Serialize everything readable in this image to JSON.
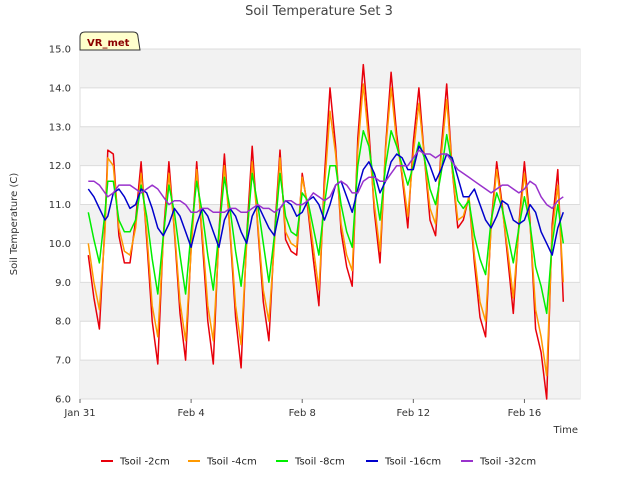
{
  "chart_data": {
    "type": "line",
    "title": "Soil Temperature Set 3",
    "xlabel": "Time",
    "ylabel": "Soil Temperature (C)",
    "badge": "VR_met",
    "ylim": [
      6.0,
      15.0
    ],
    "xlim": [
      0,
      18
    ],
    "x_unit": "days since Jan 31",
    "y_ticks": [
      "6.0",
      "7.0",
      "8.0",
      "9.0",
      "10.0",
      "11.0",
      "12.0",
      "13.0",
      "14.0",
      "15.0"
    ],
    "x_ticks": [
      {
        "value": 0,
        "label": "Jan 31"
      },
      {
        "value": 4,
        "label": "Feb 4"
      },
      {
        "value": 8,
        "label": "Feb 8"
      },
      {
        "value": 12,
        "label": "Feb 12"
      },
      {
        "value": 16,
        "label": "Feb 16"
      }
    ],
    "grid": "horizontal alternating bands",
    "legend_position": "bottom",
    "series": [
      {
        "name": "Tsoil -2cm",
        "color": "#e8000b",
        "x": [
          0.3,
          0.5,
          0.7,
          0.9,
          1.0,
          1.2,
          1.4,
          1.6,
          1.8,
          2.0,
          2.2,
          2.4,
          2.6,
          2.8,
          3.0,
          3.2,
          3.4,
          3.6,
          3.8,
          4.0,
          4.2,
          4.4,
          4.6,
          4.8,
          5.0,
          5.2,
          5.4,
          5.6,
          5.8,
          6.0,
          6.2,
          6.4,
          6.6,
          6.8,
          7.0,
          7.2,
          7.4,
          7.6,
          7.8,
          8.0,
          8.2,
          8.4,
          8.6,
          8.8,
          9.0,
          9.2,
          9.4,
          9.6,
          9.8,
          10.0,
          10.2,
          10.4,
          10.6,
          10.8,
          11.0,
          11.2,
          11.4,
          11.6,
          11.8,
          12.0,
          12.2,
          12.4,
          12.6,
          12.8,
          13.0,
          13.2,
          13.4,
          13.6,
          13.8,
          14.0,
          14.2,
          14.4,
          14.6,
          14.8,
          15.0,
          15.2,
          15.4,
          15.6,
          15.8,
          16.0,
          16.2,
          16.4,
          16.6,
          16.8,
          17.0,
          17.2,
          17.4
        ],
        "y": [
          9.7,
          8.6,
          7.8,
          10.5,
          12.4,
          12.3,
          10.2,
          9.5,
          9.5,
          10.6,
          12.1,
          10.1,
          8.0,
          6.9,
          10.2,
          12.1,
          10.3,
          8.2,
          7.0,
          9.9,
          12.1,
          10.1,
          8.0,
          6.9,
          10.3,
          12.3,
          10.3,
          8.1,
          6.8,
          10.2,
          12.5,
          10.4,
          8.5,
          7.5,
          10.2,
          12.4,
          10.1,
          9.8,
          9.7,
          11.8,
          10.9,
          9.6,
          8.4,
          11.7,
          14.0,
          12.5,
          10.3,
          9.4,
          8.9,
          12.7,
          14.6,
          12.9,
          10.8,
          9.5,
          12.5,
          14.4,
          12.8,
          11.7,
          10.4,
          12.6,
          14.0,
          12.2,
          10.6,
          10.2,
          12.4,
          14.1,
          11.9,
          10.4,
          10.6,
          11.2,
          9.5,
          8.1,
          7.6,
          10.5,
          12.1,
          11.0,
          9.6,
          8.2,
          10.5,
          12.1,
          10.6,
          7.8,
          7.2,
          6.0,
          10.5,
          11.9,
          8.5
        ]
      },
      {
        "name": "Tsoil -4cm",
        "color": "#ff9900",
        "x": [
          0.3,
          0.5,
          0.7,
          0.9,
          1.0,
          1.2,
          1.4,
          1.6,
          1.8,
          2.0,
          2.2,
          2.4,
          2.6,
          2.8,
          3.0,
          3.2,
          3.4,
          3.6,
          3.8,
          4.0,
          4.2,
          4.4,
          4.6,
          4.8,
          5.0,
          5.2,
          5.4,
          5.6,
          5.8,
          6.0,
          6.2,
          6.4,
          6.6,
          6.8,
          7.0,
          7.2,
          7.4,
          7.6,
          7.8,
          8.0,
          8.2,
          8.4,
          8.6,
          8.8,
          9.0,
          9.2,
          9.4,
          9.6,
          9.8,
          10.0,
          10.2,
          10.4,
          10.6,
          10.8,
          11.0,
          11.2,
          11.4,
          11.6,
          11.8,
          12.0,
          12.2,
          12.4,
          12.6,
          12.8,
          13.0,
          13.2,
          13.4,
          13.6,
          13.8,
          14.0,
          14.2,
          14.4,
          14.6,
          14.8,
          15.0,
          15.2,
          15.4,
          15.6,
          15.8,
          16.0,
          16.2,
          16.4,
          16.6,
          16.8,
          17.0,
          17.2,
          17.4
        ],
        "y": [
          10.0,
          9.0,
          8.3,
          10.3,
          12.2,
          12.0,
          10.4,
          9.8,
          9.7,
          10.4,
          11.8,
          10.3,
          8.4,
          7.6,
          10.1,
          11.8,
          10.4,
          8.5,
          7.5,
          9.8,
          11.9,
          10.3,
          8.4,
          7.5,
          10.1,
          12.0,
          10.4,
          8.4,
          7.4,
          10.0,
          12.1,
          10.5,
          8.8,
          8.0,
          10.0,
          12.2,
          10.3,
          10.0,
          9.9,
          11.7,
          11.0,
          9.9,
          8.8,
          11.4,
          13.4,
          12.3,
          10.5,
          9.7,
          9.3,
          12.4,
          14.1,
          12.6,
          11.0,
          9.8,
          12.4,
          14.0,
          12.6,
          11.8,
          10.7,
          12.3,
          13.6,
          12.2,
          10.9,
          10.5,
          12.2,
          13.7,
          11.9,
          10.6,
          10.7,
          11.2,
          9.7,
          8.5,
          8.0,
          10.4,
          11.9,
          10.9,
          9.8,
          8.6,
          10.4,
          11.8,
          10.5,
          8.3,
          7.6,
          6.6,
          10.3,
          11.5,
          9.0
        ]
      },
      {
        "name": "Tsoil -8cm",
        "color": "#00ee00",
        "x": [
          0.3,
          0.5,
          0.7,
          0.9,
          1.0,
          1.2,
          1.4,
          1.6,
          1.8,
          2.0,
          2.2,
          2.4,
          2.6,
          2.8,
          3.0,
          3.2,
          3.4,
          3.6,
          3.8,
          4.0,
          4.2,
          4.4,
          4.6,
          4.8,
          5.0,
          5.2,
          5.4,
          5.6,
          5.8,
          6.0,
          6.2,
          6.4,
          6.6,
          6.8,
          7.0,
          7.2,
          7.4,
          7.6,
          7.8,
          8.0,
          8.2,
          8.4,
          8.6,
          8.8,
          9.0,
          9.2,
          9.4,
          9.6,
          9.8,
          10.0,
          10.2,
          10.4,
          10.6,
          10.8,
          11.0,
          11.2,
          11.4,
          11.6,
          11.8,
          12.0,
          12.2,
          12.4,
          12.6,
          12.8,
          13.0,
          13.2,
          13.4,
          13.6,
          13.8,
          14.0,
          14.2,
          14.4,
          14.6,
          14.8,
          15.0,
          15.2,
          15.4,
          15.6,
          15.8,
          16.0,
          16.2,
          16.4,
          16.6,
          16.8,
          17.0,
          17.2,
          17.4
        ],
        "y": [
          10.8,
          10.1,
          9.5,
          10.8,
          11.6,
          11.6,
          10.6,
          10.3,
          10.3,
          10.6,
          11.5,
          10.7,
          9.6,
          8.7,
          10.2,
          11.5,
          10.8,
          9.7,
          8.7,
          10.3,
          11.6,
          10.8,
          9.7,
          8.8,
          10.3,
          11.7,
          10.9,
          9.8,
          8.9,
          10.2,
          11.8,
          11.0,
          10.0,
          9.0,
          10.2,
          11.8,
          10.7,
          10.3,
          10.2,
          11.3,
          11.1,
          10.4,
          9.7,
          11.0,
          12.0,
          12.0,
          11.0,
          10.3,
          9.9,
          12.0,
          12.9,
          12.5,
          11.5,
          10.6,
          12.0,
          12.9,
          12.5,
          12.0,
          11.5,
          12.0,
          12.6,
          12.2,
          11.4,
          11.0,
          11.8,
          12.8,
          12.0,
          11.1,
          10.9,
          11.1,
          10.2,
          9.6,
          9.2,
          10.6,
          11.3,
          10.9,
          10.2,
          9.5,
          10.4,
          11.2,
          10.5,
          9.4,
          8.9,
          8.2,
          10.0,
          11.0,
          10.0
        ]
      },
      {
        "name": "Tsoil -16cm",
        "color": "#0000cc",
        "x": [
          0.3,
          0.5,
          0.7,
          0.9,
          1.0,
          1.2,
          1.4,
          1.6,
          1.8,
          2.0,
          2.2,
          2.4,
          2.6,
          2.8,
          3.0,
          3.2,
          3.4,
          3.6,
          3.8,
          4.0,
          4.2,
          4.4,
          4.6,
          4.8,
          5.0,
          5.2,
          5.4,
          5.6,
          5.8,
          6.0,
          6.2,
          6.4,
          6.6,
          6.8,
          7.0,
          7.2,
          7.4,
          7.6,
          7.8,
          8.0,
          8.2,
          8.4,
          8.6,
          8.8,
          9.0,
          9.2,
          9.4,
          9.6,
          9.8,
          10.0,
          10.2,
          10.4,
          10.6,
          10.8,
          11.0,
          11.2,
          11.4,
          11.6,
          11.8,
          12.0,
          12.2,
          12.4,
          12.6,
          12.8,
          13.0,
          13.2,
          13.4,
          13.6,
          13.8,
          14.0,
          14.2,
          14.4,
          14.6,
          14.8,
          15.0,
          15.2,
          15.4,
          15.6,
          15.8,
          16.0,
          16.2,
          16.4,
          16.6,
          16.8,
          17.0,
          17.2,
          17.4
        ],
        "y": [
          11.4,
          11.2,
          10.9,
          10.6,
          10.7,
          11.3,
          11.4,
          11.2,
          10.9,
          11.0,
          11.4,
          11.3,
          10.9,
          10.4,
          10.2,
          10.5,
          10.9,
          10.7,
          10.3,
          9.9,
          10.5,
          10.9,
          10.7,
          10.3,
          9.9,
          10.6,
          10.9,
          10.7,
          10.3,
          10.0,
          10.7,
          11.0,
          10.7,
          10.4,
          10.2,
          10.9,
          11.1,
          11.0,
          10.7,
          10.8,
          11.1,
          11.2,
          11.0,
          10.6,
          11.0,
          11.5,
          11.6,
          11.2,
          10.8,
          11.4,
          11.9,
          12.1,
          11.8,
          11.3,
          11.6,
          12.1,
          12.3,
          12.2,
          11.9,
          11.9,
          12.5,
          12.3,
          12.0,
          11.6,
          11.9,
          12.3,
          12.2,
          11.7,
          11.2,
          11.2,
          11.4,
          11.0,
          10.6,
          10.4,
          10.7,
          11.1,
          11.0,
          10.6,
          10.5,
          10.6,
          11.0,
          10.8,
          10.3,
          10.0,
          9.7,
          10.4,
          10.8
        ]
      },
      {
        "name": "Tsoil -32cm",
        "color": "#9932cc",
        "x": [
          0.3,
          0.5,
          0.7,
          0.9,
          1.0,
          1.2,
          1.4,
          1.6,
          1.8,
          2.0,
          2.2,
          2.4,
          2.6,
          2.8,
          3.0,
          3.2,
          3.4,
          3.6,
          3.8,
          4.0,
          4.2,
          4.4,
          4.6,
          4.8,
          5.0,
          5.2,
          5.4,
          5.6,
          5.8,
          6.0,
          6.2,
          6.4,
          6.6,
          6.8,
          7.0,
          7.2,
          7.4,
          7.6,
          7.8,
          8.0,
          8.2,
          8.4,
          8.6,
          8.8,
          9.0,
          9.2,
          9.4,
          9.6,
          9.8,
          10.0,
          10.2,
          10.4,
          10.6,
          10.8,
          11.0,
          11.2,
          11.4,
          11.6,
          11.8,
          12.0,
          12.2,
          12.4,
          12.6,
          12.8,
          13.0,
          13.2,
          13.4,
          13.6,
          13.8,
          14.0,
          14.2,
          14.4,
          14.6,
          14.8,
          15.0,
          15.2,
          15.4,
          15.6,
          15.8,
          16.0,
          16.2,
          16.4,
          16.6,
          16.8,
          17.0,
          17.2,
          17.4
        ],
        "y": [
          11.6,
          11.6,
          11.5,
          11.3,
          11.2,
          11.3,
          11.5,
          11.5,
          11.5,
          11.4,
          11.3,
          11.4,
          11.5,
          11.4,
          11.2,
          11.0,
          11.1,
          11.1,
          11.0,
          10.8,
          10.8,
          10.9,
          10.9,
          10.8,
          10.8,
          10.8,
          10.9,
          10.9,
          10.8,
          10.8,
          10.9,
          11.0,
          10.9,
          10.9,
          10.8,
          10.9,
          11.1,
          11.1,
          11.0,
          11.0,
          11.1,
          11.3,
          11.2,
          11.1,
          11.2,
          11.5,
          11.6,
          11.5,
          11.3,
          11.3,
          11.6,
          11.7,
          11.7,
          11.6,
          11.6,
          11.8,
          12.0,
          12.0,
          12.0,
          12.2,
          12.4,
          12.3,
          12.3,
          12.2,
          12.3,
          12.3,
          12.1,
          11.9,
          11.8,
          11.7,
          11.6,
          11.5,
          11.4,
          11.3,
          11.4,
          11.5,
          11.5,
          11.4,
          11.3,
          11.4,
          11.6,
          11.5,
          11.2,
          11.0,
          10.9,
          11.1,
          11.2
        ]
      }
    ]
  }
}
